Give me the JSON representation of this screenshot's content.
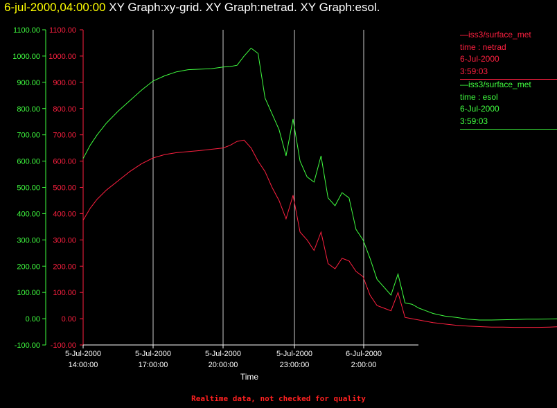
{
  "title": {
    "timestamp": "6-jul-2000,04:00:00",
    "graphs": " XY Graph:xy-grid.  XY Graph:netrad.  XY Graph:esol."
  },
  "legend": [
    {
      "line1": "—iss3/surface_met",
      "line2": "time : netrad",
      "line3": "6-Jul-2000",
      "line4": "3:59:03",
      "color": "#ff2040"
    },
    {
      "line1": "—iss3/surface_met",
      "line2": "time : esol",
      "line3": "6-Jul-2000",
      "line4": "3:59:03",
      "color": "#40ff40"
    }
  ],
  "footer": "Realtime data, not checked for quality",
  "colors": {
    "netrad": "#ff2040",
    "esol": "#40ff40",
    "grid": "#ffffff"
  },
  "chart_data": {
    "type": "line",
    "xlabel": "Time",
    "ylabel": "",
    "ylim": [
      -100,
      1100
    ],
    "yticks": [
      "1100.00",
      "1000.00",
      "900.00",
      "800.00",
      "700.00",
      "600.00",
      "500.00",
      "400.00",
      "300.00",
      "200.00",
      "100.00",
      "0.00",
      "-100.00"
    ],
    "xticks": [
      {
        "date": "5-Jul-2000",
        "time": "14:00:00"
      },
      {
        "date": "5-Jul-2000",
        "time": "17:00:00"
      },
      {
        "date": "5-Jul-2000",
        "time": "20:00:00"
      },
      {
        "date": "5-Jul-2000",
        "time": "23:00:00"
      },
      {
        "date": "6-Jul-2000",
        "time": "2:00:00"
      }
    ],
    "grid": "vertical",
    "series": [
      {
        "name": "iss3/surface_met time : esol",
        "color": "#40ff40",
        "x_hours": [
          0.0,
          0.3,
          0.6,
          1.0,
          1.5,
          2.0,
          2.5,
          3.0,
          3.5,
          4.0,
          4.5,
          5.0,
          5.5,
          6.0,
          6.3,
          6.6,
          6.9,
          7.2,
          7.5,
          7.8,
          8.1,
          8.4,
          8.7,
          9.0,
          9.3,
          9.6,
          9.9,
          10.2,
          10.5,
          10.8,
          11.1,
          11.4,
          11.7,
          12.0,
          12.3,
          12.6,
          12.9,
          13.2,
          13.5,
          13.8,
          14.1,
          14.4,
          14.7,
          15.0,
          15.5,
          16.0,
          16.5,
          17.0,
          17.5,
          18.0,
          18.5,
          19.0,
          19.5,
          20.0,
          20.5,
          21.0,
          21.5,
          22.0
        ],
        "values": [
          610,
          660,
          700,
          745,
          790,
          830,
          870,
          905,
          925,
          940,
          948,
          950,
          952,
          958,
          960,
          965,
          1000,
          1030,
          1010,
          840,
          780,
          720,
          620,
          760,
          600,
          540,
          520,
          620,
          460,
          430,
          480,
          460,
          340,
          300,
          230,
          150,
          120,
          90,
          170,
          60,
          55,
          40,
          30,
          20,
          10,
          5,
          -2,
          -5,
          -5,
          -4,
          -3,
          -2,
          -2,
          -1,
          0,
          1,
          3,
          0
        ]
      },
      {
        "name": "iss3/surface_met time : netrad",
        "color": "#ff2040",
        "x_hours": [
          0.0,
          0.3,
          0.6,
          1.0,
          1.5,
          2.0,
          2.5,
          3.0,
          3.5,
          4.0,
          4.5,
          5.0,
          5.5,
          6.0,
          6.3,
          6.6,
          6.9,
          7.2,
          7.5,
          7.8,
          8.1,
          8.4,
          8.7,
          9.0,
          9.3,
          9.6,
          9.9,
          10.2,
          10.5,
          10.8,
          11.1,
          11.4,
          11.7,
          12.0,
          12.3,
          12.6,
          12.9,
          13.2,
          13.5,
          13.8,
          14.1,
          14.4,
          14.7,
          15.0,
          15.5,
          16.0,
          16.5,
          17.0,
          17.5,
          18.0,
          18.5,
          19.0,
          19.5,
          20.0,
          20.5,
          21.0,
          21.5,
          22.0
        ],
        "values": [
          375,
          420,
          455,
          490,
          525,
          560,
          590,
          612,
          625,
          632,
          636,
          640,
          645,
          650,
          660,
          675,
          680,
          650,
          600,
          560,
          500,
          450,
          380,
          470,
          330,
          300,
          260,
          330,
          210,
          190,
          230,
          220,
          180,
          160,
          90,
          50,
          40,
          30,
          100,
          5,
          0,
          -5,
          -10,
          -15,
          -20,
          -25,
          -28,
          -30,
          -32,
          -32,
          -33,
          -33,
          -33,
          -32,
          -30,
          -28,
          -15,
          -45
        ]
      }
    ]
  }
}
